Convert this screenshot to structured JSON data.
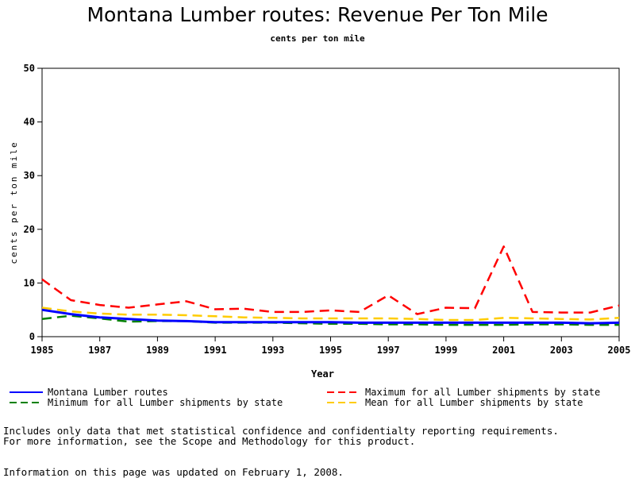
{
  "page": {
    "title": "Montana Lumber routes: Revenue Per Ton Mile",
    "subtitle": "cents per ton mile",
    "footnote_line1": "Includes only data that met statistical confidence and confidentialty reporting requirements.",
    "footnote_line2": "For more information, see the Scope and Methodology for this product.",
    "update_note": "Information on this page was updated on February 1, 2008."
  },
  "chart_data": {
    "type": "line",
    "title": "Montana Lumber routes: Revenue Per Ton Mile",
    "subtitle": "cents per ton mile",
    "xlabel": "Year",
    "ylabel": "cents per ton mile",
    "xlim": [
      1985,
      2005
    ],
    "ylim": [
      0,
      50
    ],
    "xticks": [
      1985,
      1987,
      1989,
      1991,
      1993,
      1995,
      1997,
      1999,
      2001,
      2003,
      2005
    ],
    "yticks": [
      0,
      10,
      20,
      30,
      40,
      50
    ],
    "grid": false,
    "legend_placement": "bottom",
    "x": [
      1985,
      1986,
      1987,
      1988,
      1989,
      1990,
      1991,
      1992,
      1993,
      1994,
      1995,
      1996,
      1997,
      1998,
      1999,
      2000,
      2001,
      2002,
      2003,
      2004,
      2005
    ],
    "series": [
      {
        "name": "Montana Lumber routes",
        "color": "#0000ff",
        "dash": "solid",
        "values": [
          5.0,
          4.2,
          3.6,
          3.3,
          3.0,
          2.9,
          2.7,
          2.7,
          2.7,
          2.7,
          2.7,
          2.6,
          2.6,
          2.6,
          2.6,
          2.6,
          2.6,
          2.6,
          2.6,
          2.5,
          2.6
        ]
      },
      {
        "name": "Maximum for all Lumber shipments by state",
        "color": "#ff0000",
        "dash": "dashed",
        "values": [
          10.7,
          6.8,
          5.9,
          5.4,
          6.0,
          6.6,
          5.1,
          5.2,
          4.6,
          4.6,
          4.9,
          4.6,
          7.7,
          4.2,
          5.4,
          5.3,
          16.8,
          4.6,
          4.5,
          4.5,
          5.8
        ]
      },
      {
        "name": "Minimum for all Lumber shipments by state",
        "color": "#008000",
        "dash": "dashed",
        "values": [
          3.3,
          3.9,
          3.4,
          2.8,
          2.9,
          2.9,
          2.6,
          2.6,
          2.6,
          2.5,
          2.4,
          2.4,
          2.3,
          2.3,
          2.2,
          2.2,
          2.2,
          2.3,
          2.3,
          2.2,
          2.2
        ]
      },
      {
        "name": "Mean for all Lumber shipments by state",
        "color": "#ffcc00",
        "dash": "dashed",
        "values": [
          5.4,
          4.7,
          4.3,
          4.1,
          4.1,
          4.0,
          3.8,
          3.6,
          3.5,
          3.4,
          3.4,
          3.4,
          3.4,
          3.3,
          3.1,
          3.1,
          3.5,
          3.4,
          3.3,
          3.2,
          3.5
        ]
      }
    ]
  }
}
